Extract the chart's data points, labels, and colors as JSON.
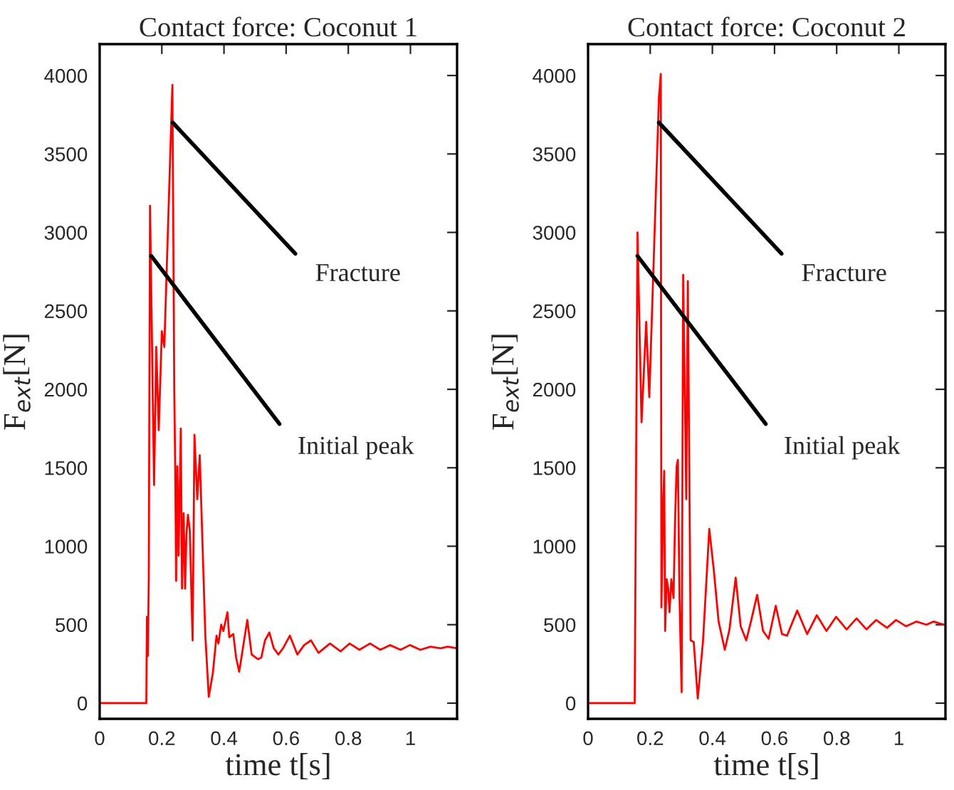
{
  "chart_data": [
    {
      "type": "line",
      "title": "Contact force: Coconut 1",
      "xlabel": "time t[s]",
      "ylabel": "F$_{ext}$[N]",
      "xlim": [
        0,
        1.15
      ],
      "ylim": [
        -100,
        4200
      ],
      "xticks": [
        0,
        0.2,
        0.4,
        0.6,
        0.8,
        1
      ],
      "yticks": [
        0,
        500,
        1000,
        1500,
        2000,
        2500,
        3000,
        3500,
        4000
      ],
      "grid": false,
      "legend": false,
      "series": [
        {
          "color": "#ff0000",
          "x": [
            0,
            0.1,
            0.15,
            0.152,
            0.155,
            0.158,
            0.162,
            0.175,
            0.182,
            0.19,
            0.2,
            0.208,
            0.234,
            0.24,
            0.243,
            0.246,
            0.25,
            0.254,
            0.261,
            0.265,
            0.27,
            0.275,
            0.279,
            0.284,
            0.29,
            0.299,
            0.305,
            0.314,
            0.322,
            0.34,
            0.351,
            0.364,
            0.376,
            0.382,
            0.391,
            0.398,
            0.411,
            0.417,
            0.43,
            0.439,
            0.449,
            0.46,
            0.475,
            0.489,
            0.509,
            0.52,
            0.532,
            0.546,
            0.56,
            0.575,
            0.59,
            0.612,
            0.636,
            0.658,
            0.68,
            0.704,
            0.741,
            0.775,
            0.804,
            0.836,
            0.87,
            0.903,
            0.934,
            0.968,
            0.998,
            1.032,
            1.064,
            1.097,
            1.12,
            1.15
          ],
          "values": [
            0,
            0,
            0,
            550,
            300,
            800,
            3170,
            1390,
            2270,
            1740,
            2370,
            2270,
            3940,
            2000,
            1510,
            780,
            1510,
            940,
            1750,
            730,
            1210,
            730,
            1070,
            1200,
            1100,
            400,
            1710,
            1300,
            1580,
            430,
            40,
            190,
            430,
            380,
            500,
            460,
            580,
            420,
            440,
            290,
            200,
            340,
            530,
            310,
            280,
            290,
            400,
            450,
            350,
            310,
            350,
            430,
            310,
            370,
            400,
            320,
            380,
            330,
            380,
            340,
            380,
            340,
            370,
            340,
            370,
            340,
            360,
            350,
            360,
            350
          ]
        }
      ],
      "annotations": [
        {
          "text": "Fracture",
          "x": 0.235,
          "y": 3700
        },
        {
          "text": "Initial peak",
          "x": 0.166,
          "y": 2850
        }
      ]
    },
    {
      "type": "line",
      "title": "Contact force: Coconut 2",
      "xlabel": "time t[s]",
      "ylabel": "F$_{ext}$[N]",
      "xlim": [
        0,
        1.15
      ],
      "ylim": [
        -100,
        4200
      ],
      "xticks": [
        0,
        0.2,
        0.4,
        0.6,
        0.8,
        1
      ],
      "yticks": [
        0,
        500,
        1000,
        1500,
        2000,
        2500,
        3000,
        3500,
        4000
      ],
      "grid": false,
      "legend": false,
      "series": [
        {
          "color": "#ff0000",
          "x": [
            0,
            0.1,
            0.15,
            0.159,
            0.172,
            0.187,
            0.197,
            0.228,
            0.234,
            0.236,
            0.242,
            0.245,
            0.248,
            0.253,
            0.258,
            0.262,
            0.268,
            0.275,
            0.28,
            0.285,
            0.289,
            0.294,
            0.301,
            0.306,
            0.316,
            0.321,
            0.33,
            0.34,
            0.353,
            0.37,
            0.39,
            0.405,
            0.42,
            0.44,
            0.455,
            0.475,
            0.491,
            0.509,
            0.524,
            0.544,
            0.563,
            0.581,
            0.604,
            0.624,
            0.64,
            0.673,
            0.705,
            0.736,
            0.767,
            0.798,
            0.832,
            0.864,
            0.896,
            0.927,
            0.962,
            0.991,
            1.023,
            1.057,
            1.089,
            1.112,
            1.146
          ],
          "values": [
            0,
            0,
            0,
            3000,
            1790,
            2430,
            1950,
            3860,
            4010,
            610,
            1300,
            1480,
            460,
            790,
            730,
            580,
            790,
            670,
            1170,
            1510,
            1550,
            700,
            70,
            2730,
            1300,
            2690,
            400,
            390,
            30,
            400,
            1110,
            840,
            520,
            340,
            470,
            800,
            490,
            400,
            520,
            690,
            460,
            410,
            620,
            440,
            430,
            590,
            440,
            560,
            460,
            550,
            470,
            540,
            470,
            530,
            480,
            530,
            490,
            520,
            500,
            520,
            500
          ]
        }
      ],
      "annotations": [
        {
          "text": "Fracture",
          "x": 0.228,
          "y": 3700
        },
        {
          "text": "Initial peak",
          "x": 0.159,
          "y": 2850
        }
      ]
    }
  ]
}
